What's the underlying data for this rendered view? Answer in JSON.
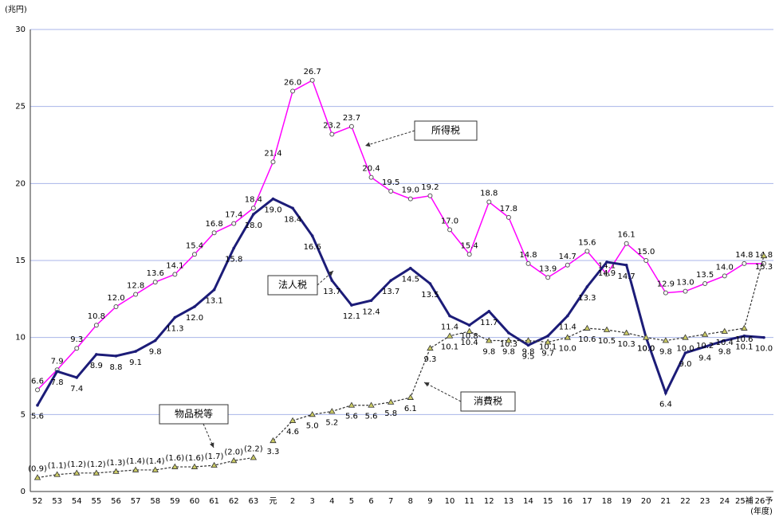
{
  "chart_data": {
    "type": "line",
    "y_unit": "(兆円)",
    "x_unit": "(年度)",
    "categories": [
      "52",
      "53",
      "54",
      "55",
      "56",
      "57",
      "58",
      "59",
      "60",
      "61",
      "62",
      "63",
      "元",
      "2",
      "3",
      "4",
      "5",
      "6",
      "7",
      "8",
      "9",
      "10",
      "11",
      "12",
      "13",
      "14",
      "15",
      "16",
      "17",
      "18",
      "19",
      "20",
      "21",
      "22",
      "23",
      "24",
      "25補",
      "26予"
    ],
    "ylim": [
      0,
      30
    ],
    "yticks": [
      0,
      5,
      10,
      15,
      20,
      25,
      30
    ],
    "grid": true,
    "series": [
      {
        "name": "所得税",
        "color": "#ff00ff",
        "marker": "circle",
        "dashed": false,
        "label_side": "above",
        "values": [
          6.6,
          7.9,
          9.3,
          10.8,
          12.0,
          12.8,
          13.6,
          14.1,
          15.4,
          16.8,
          17.4,
          18.4,
          21.4,
          26.0,
          26.7,
          23.2,
          23.7,
          20.4,
          19.5,
          19.0,
          19.2,
          17.0,
          15.4,
          18.8,
          17.8,
          14.8,
          13.9,
          14.7,
          15.6,
          14.1,
          16.1,
          15.0,
          12.9,
          13.0,
          13.5,
          14.0,
          14.8,
          14.8
        ],
        "value_labels": [
          "6.6",
          "7.9",
          "9.3",
          "10.8",
          "12.0",
          "12.8",
          "13.6",
          "14.1",
          "15.4",
          "16.8",
          "17.4",
          "18.4",
          "21.4",
          "26.0",
          "26.7",
          "23.2",
          "23.7",
          "20.4",
          "19.5",
          "19.0",
          "19.2",
          "17.0",
          "15.4",
          "18.8",
          "17.8",
          "14.8",
          "13.9",
          "14.7",
          "15.6",
          "14.1",
          "16.1",
          "15.0",
          "12.9",
          "13.0",
          "13.5",
          "14.0",
          "14.8",
          "14.8"
        ]
      },
      {
        "name": "法人税",
        "color": "#1c1c78",
        "marker": "none",
        "dashed": false,
        "label_side": "below",
        "values": [
          5.6,
          7.8,
          7.4,
          8.9,
          8.8,
          9.1,
          9.8,
          11.3,
          12.0,
          13.1,
          15.8,
          18.0,
          19.0,
          18.4,
          16.6,
          13.7,
          12.1,
          12.4,
          13.7,
          14.5,
          13.5,
          11.4,
          10.8,
          11.7,
          10.3,
          9.5,
          10.1,
          11.4,
          13.3,
          14.9,
          14.7,
          10.0,
          6.4,
          9.0,
          9.4,
          9.8,
          10.1,
          10.0
        ],
        "value_labels": [
          "5.6",
          "7.8",
          "7.4",
          "8.9",
          "8.8",
          "9.1",
          "9.8",
          "11.3",
          "12.0",
          "13.1",
          "15.8",
          "18.0",
          "19.0",
          "18.4",
          "16.6",
          "13.7",
          "12.1",
          "12.4",
          "13.7",
          "14.5",
          "13.5",
          "11.4",
          "10.8",
          "11.7",
          "10.3",
          "9.5",
          "10.1",
          "11.4",
          "13.3",
          "14.9",
          "14.7",
          "10.0",
          "6.4",
          "9.0",
          "9.4",
          "9.8",
          "10.1",
          "10.0"
        ]
      },
      {
        "name": "消費税",
        "color": "#333333",
        "marker": "triangle",
        "dashed": true,
        "label_side": "below",
        "values": [
          null,
          null,
          null,
          null,
          null,
          null,
          null,
          null,
          null,
          null,
          null,
          null,
          3.3,
          4.6,
          5.0,
          5.2,
          5.6,
          5.6,
          5.8,
          6.1,
          9.3,
          10.1,
          10.4,
          9.8,
          9.8,
          9.8,
          9.7,
          10.0,
          10.6,
          10.5,
          10.3,
          10.0,
          9.8,
          10.0,
          10.2,
          10.4,
          10.6,
          15.3
        ],
        "value_labels": [
          null,
          null,
          null,
          null,
          null,
          null,
          null,
          null,
          null,
          null,
          null,
          null,
          "3.3",
          "4.6",
          "5.0",
          "5.2",
          "5.6",
          "5.6",
          "5.8",
          "6.1",
          "9.3",
          "10.1",
          "10.4",
          "9.8",
          "9.8",
          "9.8",
          "9.7",
          "10.0",
          "10.6",
          "10.5",
          "10.3",
          "10.0",
          "9.8",
          "10.0",
          "10.2",
          "10.4",
          "10.6",
          "15.3"
        ]
      },
      {
        "name": "物品税等",
        "color": "#333333",
        "marker": "triangle",
        "dashed": true,
        "label_side": "above",
        "values": [
          0.9,
          1.1,
          1.2,
          1.2,
          1.3,
          1.4,
          1.4,
          1.6,
          1.6,
          1.7,
          2.0,
          2.2,
          null,
          null,
          null,
          null,
          null,
          null,
          null,
          null,
          null,
          null,
          null,
          null,
          null,
          null,
          null,
          null,
          null,
          null,
          null,
          null,
          null,
          null,
          null,
          null,
          null,
          null
        ],
        "value_labels": [
          "(0.9)",
          "(1.1)",
          "(1.2)",
          "(1.2)",
          "(1.3)",
          "(1.4)",
          "(1.4)",
          "(1.6)",
          "(1.6)",
          "(1.7)",
          "(2.0)",
          "(2.2)",
          null,
          null,
          null,
          null,
          null,
          null,
          null,
          null,
          null,
          null,
          null,
          null,
          null,
          null,
          null,
          null,
          null,
          null,
          null,
          null,
          null,
          null,
          null,
          null,
          null,
          null
        ]
      }
    ]
  }
}
